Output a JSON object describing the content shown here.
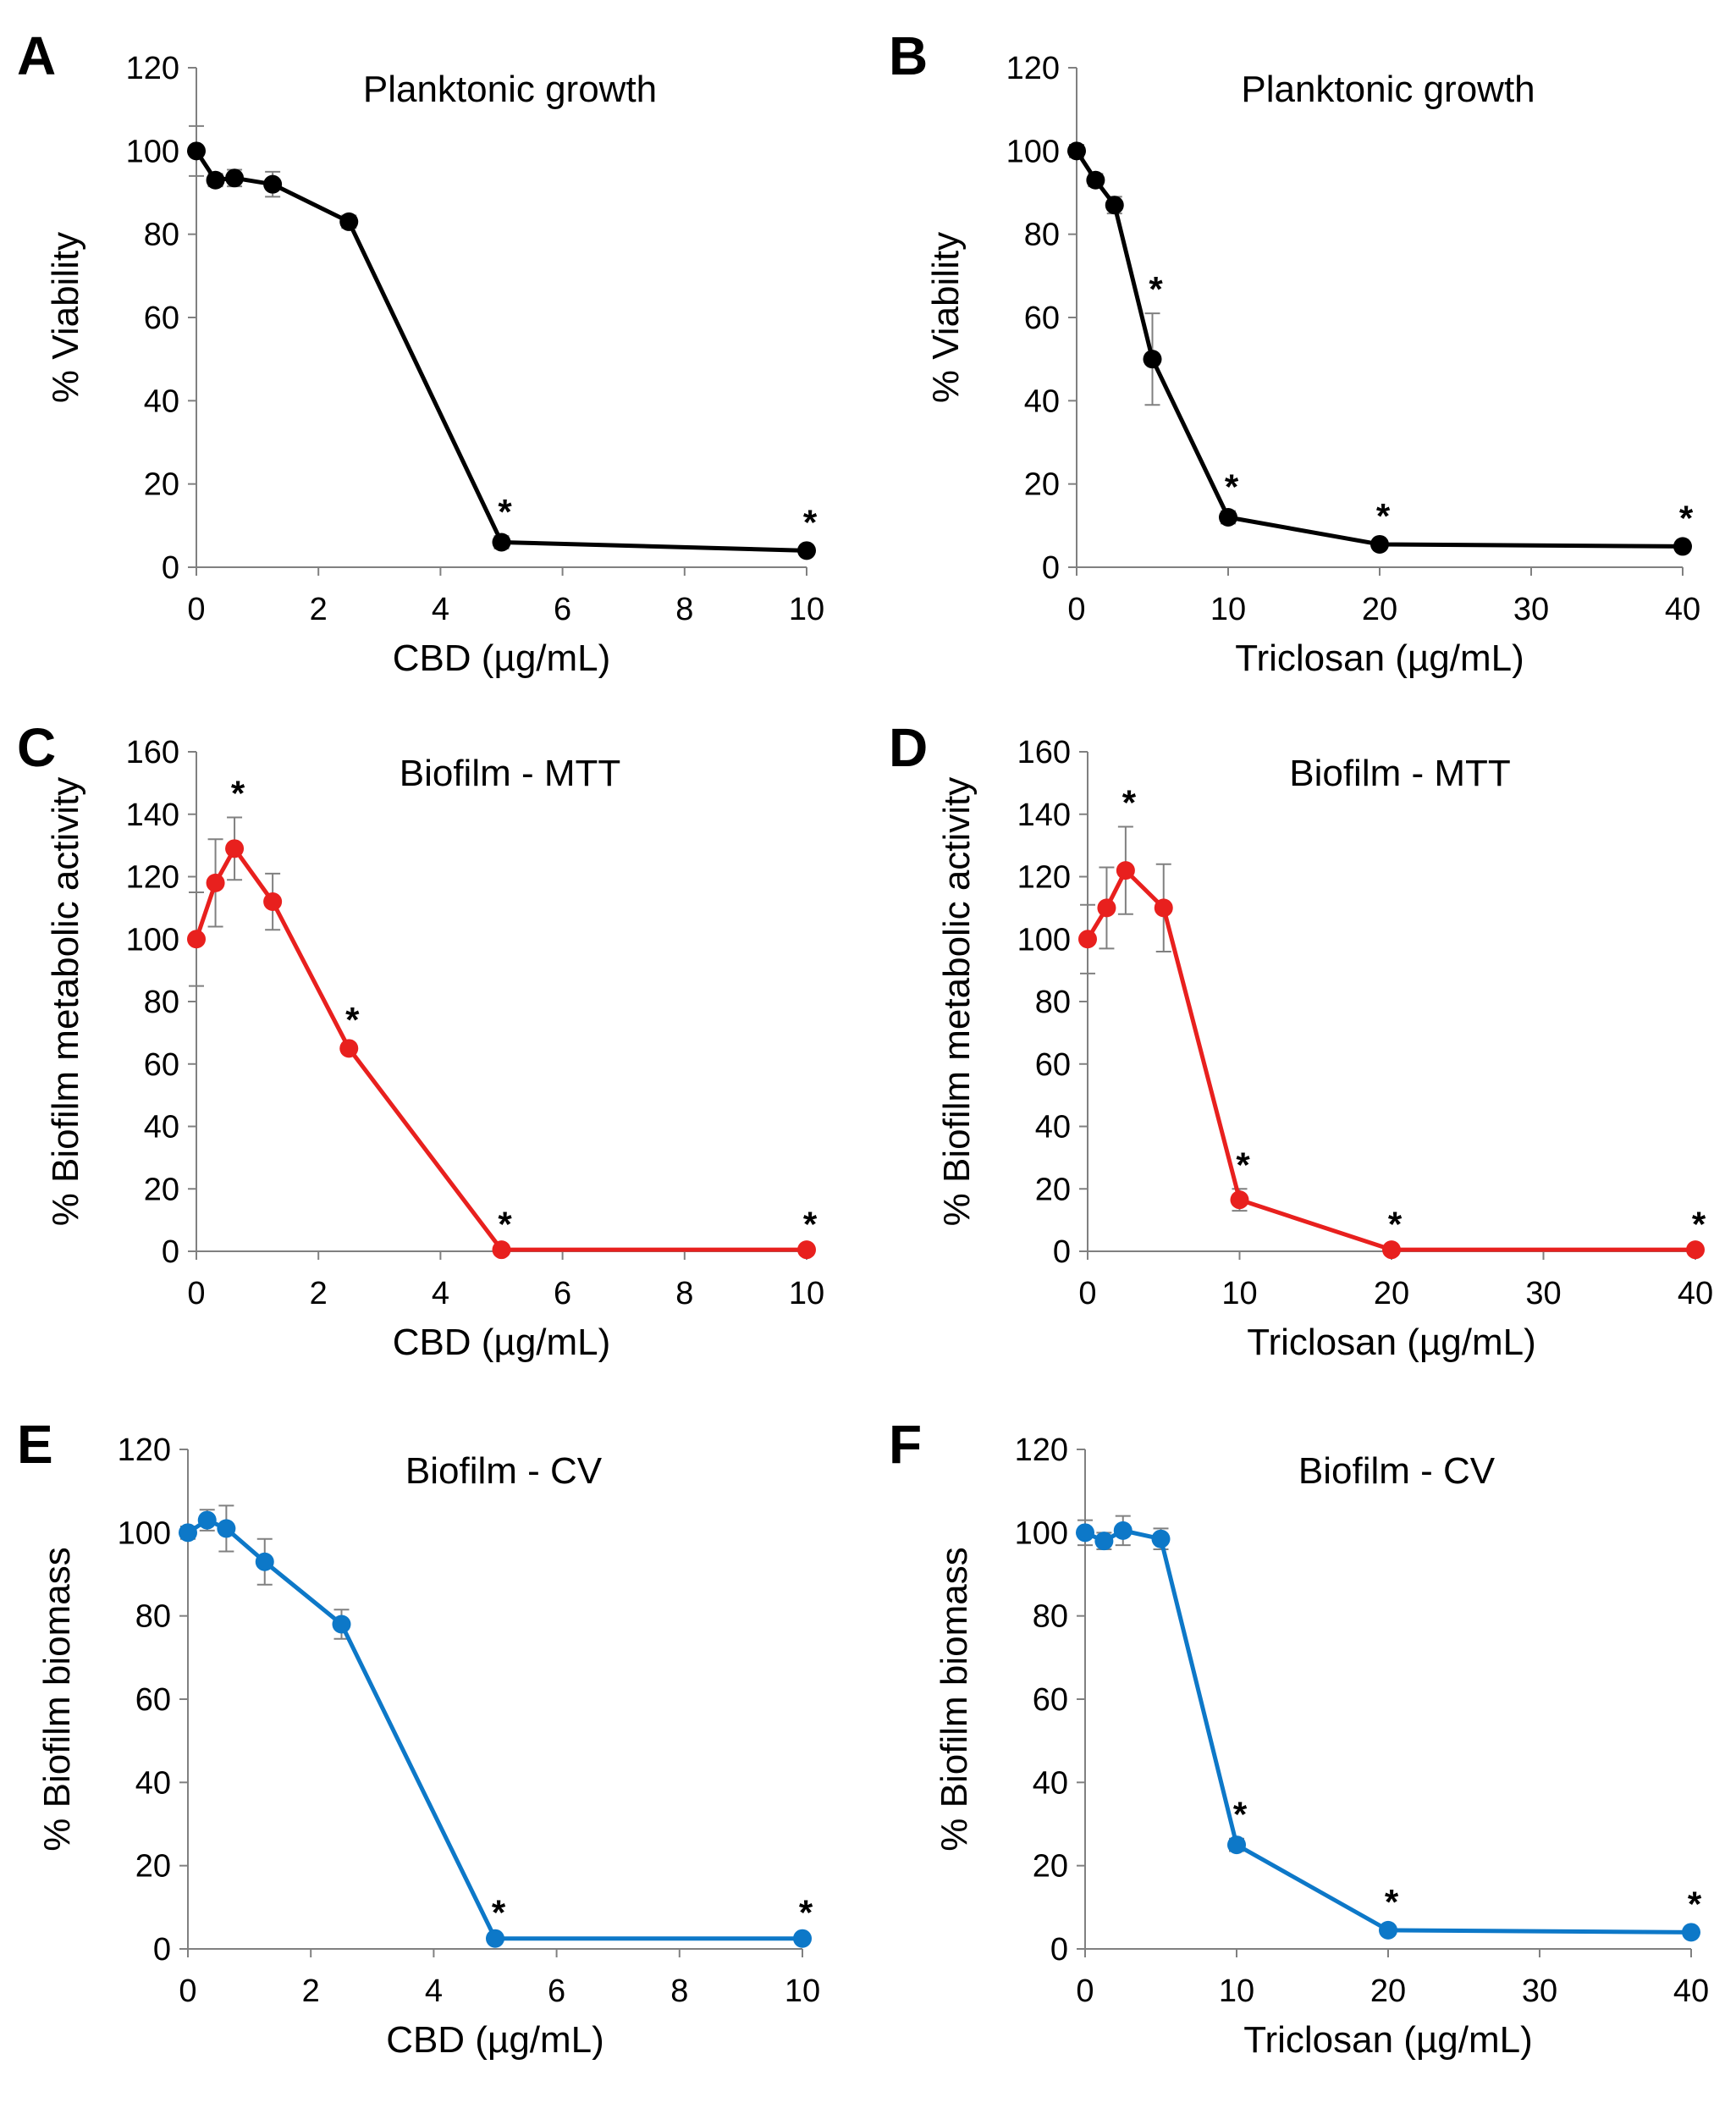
{
  "chart_data": [
    {
      "panel": "A",
      "type": "line",
      "title": "Planktonic growth",
      "xlabel": "CBD (µg/mL)",
      "ylabel": "% Viability",
      "xlim": [
        0,
        10
      ],
      "xticks": [
        0,
        2,
        4,
        6,
        8,
        10
      ],
      "ylim": [
        0,
        120
      ],
      "yticks": [
        0,
        20,
        40,
        60,
        80,
        100,
        120
      ],
      "color": "#000000",
      "series": [
        {
          "name": "Planktonic growth",
          "x": [
            0,
            0.313,
            0.625,
            1.25,
            2.5,
            5,
            10
          ],
          "y": [
            100,
            93,
            93.5,
            92,
            83,
            6,
            4
          ],
          "err": [
            6,
            1.5,
            2,
            3,
            1.5,
            1.5,
            1
          ],
          "significant": [
            false,
            false,
            false,
            false,
            false,
            true,
            true
          ]
        }
      ]
    },
    {
      "panel": "B",
      "type": "line",
      "title": "Planktonic growth",
      "xlabel": "Triclosan (µg/mL)",
      "ylabel": "% Viability",
      "xlim": [
        0,
        40
      ],
      "xticks": [
        0,
        10,
        20,
        30,
        40
      ],
      "ylim": [
        0,
        120
      ],
      "yticks": [
        0,
        20,
        40,
        60,
        80,
        100,
        120
      ],
      "color": "#000000",
      "series": [
        {
          "name": "Planktonic growth",
          "x": [
            0,
            1.25,
            2.5,
            5,
            10,
            20,
            40
          ],
          "y": [
            100,
            93,
            87,
            50,
            12,
            5.5,
            5
          ],
          "err": [
            1.5,
            1.5,
            2,
            11,
            1.5,
            1,
            1
          ],
          "significant": [
            false,
            false,
            false,
            true,
            true,
            true,
            true
          ]
        }
      ]
    },
    {
      "panel": "C",
      "type": "line",
      "title": "Biofilm - MTT",
      "xlabel": "CBD (µg/mL)",
      "ylabel": "% Biofilm metabolic activity",
      "xlim": [
        0,
        10
      ],
      "xticks": [
        0,
        2,
        4,
        6,
        8,
        10
      ],
      "ylim": [
        0,
        160
      ],
      "yticks": [
        0,
        20,
        40,
        60,
        80,
        100,
        120,
        140,
        160
      ],
      "color": "#e8201e",
      "series": [
        {
          "name": "Biofilm - MTT",
          "x": [
            0,
            0.313,
            0.625,
            1.25,
            2.5,
            5,
            10
          ],
          "y": [
            100,
            118,
            129,
            112,
            65,
            0.5,
            0.5
          ],
          "err": [
            15,
            14,
            10,
            9,
            1.5,
            0.5,
            0.5
          ],
          "significant": [
            false,
            false,
            true,
            false,
            true,
            true,
            true
          ]
        }
      ]
    },
    {
      "panel": "D",
      "type": "line",
      "title": "Biofilm - MTT",
      "xlabel": "Triclosan (µg/mL)",
      "ylabel": "% Biofilm metabolic activity",
      "xlim": [
        0,
        40
      ],
      "xticks": [
        0,
        10,
        20,
        30,
        40
      ],
      "ylim": [
        0,
        160
      ],
      "yticks": [
        0,
        20,
        40,
        60,
        80,
        100,
        120,
        140,
        160
      ],
      "color": "#e8201e",
      "series": [
        {
          "name": "Biofilm - MTT",
          "x": [
            0,
            1.25,
            2.5,
            5,
            10,
            20,
            40
          ],
          "y": [
            100,
            110,
            122,
            110,
            16.5,
            0.5,
            0.5
          ],
          "err": [
            11,
            13,
            14,
            14,
            3.5,
            0.5,
            0.5
          ],
          "significant": [
            false,
            false,
            true,
            false,
            true,
            true,
            true
          ]
        }
      ]
    },
    {
      "panel": "E",
      "type": "line",
      "title": "Biofilm - CV",
      "xlabel": "CBD (µg/mL)",
      "ylabel": "% Biofilm biomass",
      "xlim": [
        0,
        10
      ],
      "xticks": [
        0,
        2,
        4,
        6,
        8,
        10
      ],
      "ylim": [
        0,
        120
      ],
      "yticks": [
        0,
        20,
        40,
        60,
        80,
        100,
        120
      ],
      "color": "#0d78c8",
      "series": [
        {
          "name": "Biofilm - CV",
          "x": [
            0,
            0.313,
            0.625,
            1.25,
            2.5,
            5,
            10
          ],
          "y": [
            100,
            103,
            101,
            93,
            78,
            2.5,
            2.5
          ],
          "err": [
            1.5,
            2.5,
            5.5,
            5.5,
            3.5,
            0.5,
            0.5
          ],
          "significant": [
            false,
            false,
            false,
            false,
            false,
            true,
            true
          ]
        }
      ]
    },
    {
      "panel": "F",
      "type": "line",
      "title": "Biofilm - CV",
      "xlabel": "Triclosan (µg/mL)",
      "ylabel": "% Biofilm biomass",
      "xlim": [
        0,
        40
      ],
      "xticks": [
        0,
        10,
        20,
        30,
        40
      ],
      "ylim": [
        0,
        120
      ],
      "yticks": [
        0,
        20,
        40,
        60,
        80,
        100,
        120
      ],
      "color": "#0d78c8",
      "series": [
        {
          "name": "Biofilm - CV",
          "x": [
            0,
            1.25,
            2.5,
            5,
            10,
            20,
            40
          ],
          "y": [
            100,
            98,
            100.5,
            98.5,
            25,
            4.5,
            4
          ],
          "err": [
            3,
            2,
            3.5,
            2.5,
            1.5,
            1,
            1
          ],
          "significant": [
            false,
            false,
            false,
            false,
            true,
            true,
            true
          ]
        }
      ]
    }
  ]
}
